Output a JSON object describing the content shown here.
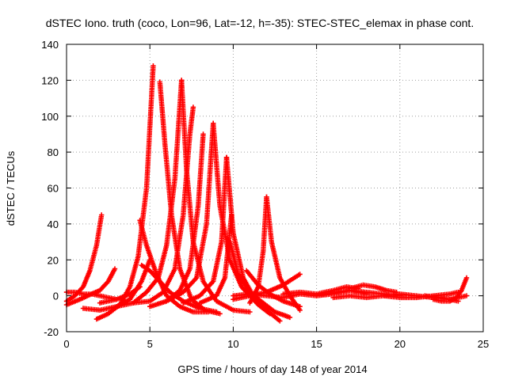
{
  "chart_data": {
    "type": "scatter",
    "title": "dSTEC Iono. truth (coco, Lon=96, Lat=-12, h=-35): STEC-STEC_elemax in phase cont.",
    "xlabel": "GPS time / hours of day 148 of year 2014",
    "ylabel": "dSTEC  / TECUs",
    "xlim": [
      0,
      25
    ],
    "ylim": [
      -20,
      140
    ],
    "xticks": [
      "0",
      "5",
      "10",
      "15",
      "20",
      "25"
    ],
    "yticks": [
      "-20",
      "0",
      "20",
      "40",
      "60",
      "80",
      "100",
      "120",
      "140"
    ],
    "grid": true,
    "marker": "plus",
    "color": "#ff0000",
    "series": [
      {
        "x": [
          0.0,
          0.5,
          1.0,
          1.4,
          1.8,
          2.1
        ],
        "y": [
          -3,
          0,
          5,
          14,
          28,
          45
        ]
      },
      {
        "x": [
          0.0,
          0.8,
          1.5,
          2.0,
          2.5,
          2.9
        ],
        "y": [
          -5,
          -2,
          1,
          3,
          8,
          15
        ]
      },
      {
        "x": [
          0.0,
          0.5,
          1.0,
          1.5,
          2.0,
          2.5,
          3.0
        ],
        "y": [
          2,
          2,
          1,
          1,
          0,
          -1,
          -2
        ]
      },
      {
        "x": [
          1.0,
          2.0,
          3.0,
          3.8,
          4.5,
          5.0
        ],
        "y": [
          -7,
          -8,
          -6,
          -2,
          8,
          20
        ]
      },
      {
        "x": [
          1.8,
          2.5,
          3.2,
          3.8,
          4.3,
          4.8,
          5.2
        ],
        "y": [
          -13,
          -10,
          -5,
          5,
          22,
          60,
          128
        ]
      },
      {
        "x": [
          2.0,
          3.0,
          3.8,
          4.4
        ],
        "y": [
          -4,
          -2,
          1,
          5
        ]
      },
      {
        "x": [
          4.4,
          4.8,
          5.4,
          6.0,
          6.8,
          7.6,
          8.5
        ],
        "y": [
          42,
          28,
          12,
          0,
          -6,
          -9,
          -9
        ]
      },
      {
        "x": [
          4.5,
          5.0,
          5.6,
          6.2,
          7.0,
          8.0,
          9.0
        ],
        "y": [
          17,
          14,
          8,
          2,
          -3,
          -7,
          -9
        ]
      },
      {
        "x": [
          3.0,
          4.0,
          4.8,
          5.5,
          6.0,
          6.5,
          6.9
        ],
        "y": [
          -6,
          -4,
          2,
          10,
          28,
          65,
          120
        ]
      },
      {
        "x": [
          5.6,
          5.9,
          6.3,
          6.8,
          7.5,
          8.3,
          9.2
        ],
        "y": [
          119,
          85,
          45,
          15,
          -2,
          -8,
          -10
        ]
      },
      {
        "x": [
          4.0,
          5.0,
          5.8,
          6.5,
          7.0,
          7.4,
          7.6
        ],
        "y": [
          -4,
          -3,
          2,
          15,
          45,
          90,
          105
        ]
      },
      {
        "x": [
          6.9,
          7.2,
          7.6,
          8.2,
          9.0,
          10.0,
          11.0
        ],
        "y": [
          120,
          70,
          30,
          8,
          -3,
          -8,
          -9
        ]
      },
      {
        "x": [
          5.0,
          6.0,
          6.8,
          7.4,
          7.9,
          8.2
        ],
        "y": [
          -6,
          -3,
          3,
          15,
          50,
          90
        ]
      },
      {
        "x": [
          6.0,
          7.0,
          7.8,
          8.4,
          8.8
        ],
        "y": [
          -3,
          2,
          10,
          40,
          96
        ]
      },
      {
        "x": [
          8.8,
          9.2,
          9.8,
          10.5,
          11.5,
          12.2
        ],
        "y": [
          96,
          50,
          20,
          5,
          -5,
          -10
        ]
      },
      {
        "x": [
          7.0,
          8.0,
          8.8,
          9.3,
          9.6
        ],
        "y": [
          -4,
          0,
          8,
          30,
          77
        ]
      },
      {
        "x": [
          9.6,
          10.0,
          10.6,
          11.2,
          12.0,
          12.8
        ],
        "y": [
          77,
          35,
          10,
          0,
          -8,
          -14
        ]
      },
      {
        "x": [
          8.0,
          9.0,
          9.5,
          9.9
        ],
        "y": [
          -4,
          0,
          10,
          45
        ]
      },
      {
        "x": [
          9.8,
          10.3,
          11.0,
          11.8,
          12.5,
          13.4
        ],
        "y": [
          30,
          12,
          2,
          -4,
          -9,
          -12
        ]
      },
      {
        "x": [
          10.0,
          11.0,
          12.0,
          12.5,
          13.0,
          14.0
        ],
        "y": [
          -2,
          0,
          2,
          4,
          6,
          12
        ]
      },
      {
        "x": [
          11.0,
          11.5,
          11.8,
          12.0
        ],
        "y": [
          -4,
          5,
          25,
          55
        ]
      },
      {
        "x": [
          12.0,
          12.3,
          12.8,
          13.4,
          14.0
        ],
        "y": [
          55,
          30,
          10,
          0,
          -8
        ]
      },
      {
        "x": [
          10.8,
          11.5,
          12.2,
          13.0,
          14.0
        ],
        "y": [
          14,
          6,
          1,
          -3,
          -6
        ]
      },
      {
        "x": [
          10.0,
          11.0,
          12.0,
          13.0,
          14.0,
          15.0,
          16.0,
          17.0,
          18.0
        ],
        "y": [
          0,
          1,
          0,
          -1,
          1,
          0,
          2,
          3,
          1
        ]
      },
      {
        "x": [
          13.0,
          14.0,
          15.0,
          16.0,
          16.8,
          17.5
        ],
        "y": [
          1,
          2,
          1,
          3,
          5,
          4
        ]
      },
      {
        "x": [
          15.0,
          16.0,
          17.0,
          18.0,
          19.0,
          20.0
        ],
        "y": [
          0,
          1,
          3,
          2,
          1,
          0
        ]
      },
      {
        "x": [
          17.0,
          17.8,
          18.5,
          19.2,
          19.8
        ],
        "y": [
          4,
          6,
          5,
          3,
          2
        ]
      },
      {
        "x": [
          16.0,
          17.0,
          18.0,
          19.0,
          20.0,
          21.0,
          22.0,
          23.0,
          23.5
        ],
        "y": [
          -1,
          0,
          -1,
          0,
          1,
          0,
          -1,
          -2,
          -3
        ]
      },
      {
        "x": [
          19.0,
          20.0,
          21.0,
          22.0,
          23.0,
          23.5
        ],
        "y": [
          0,
          -1,
          -1,
          0,
          1,
          2
        ]
      },
      {
        "x": [
          22.0,
          22.5,
          23.0,
          23.4,
          23.7,
          24.0
        ],
        "y": [
          -2,
          -3,
          -3,
          -1,
          3,
          10
        ]
      },
      {
        "x": [
          21.5,
          22.5,
          23.0,
          23.5,
          24.0
        ],
        "y": [
          0,
          -1,
          -2,
          -1,
          0
        ]
      }
    ]
  }
}
